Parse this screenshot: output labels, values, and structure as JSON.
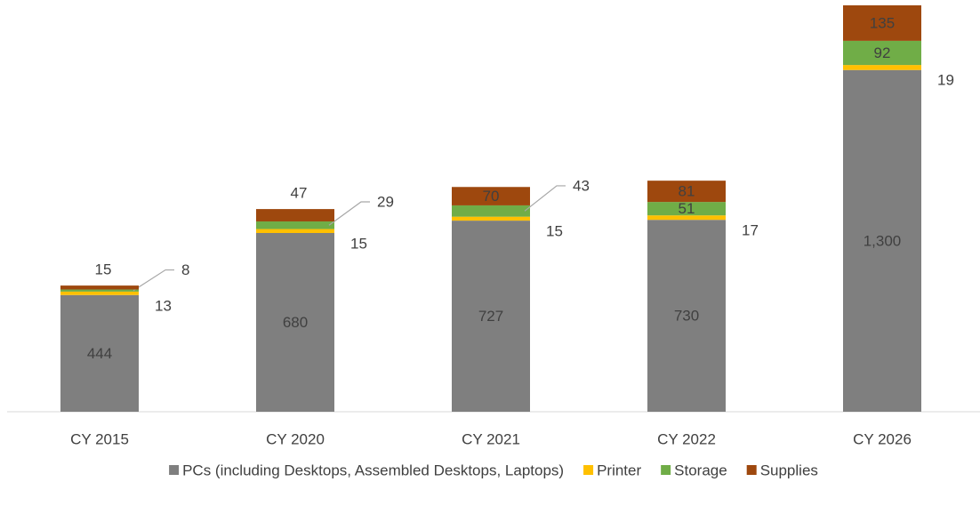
{
  "chart_data": {
    "type": "stacked_bar",
    "categories": [
      "CY 2015",
      "CY 2020",
      "CY 2021",
      "CY 2022",
      "CY 2026"
    ],
    "series": [
      {
        "name": "PCs (including Desktops, Assembled Desktops, Laptops)",
        "color": "#7f7f7f",
        "values": [
          444,
          680,
          727,
          730,
          1300
        ],
        "value_labels": [
          "444",
          "680",
          "727",
          "730",
          "1,300"
        ]
      },
      {
        "name": "Printer",
        "color": "#ffc000",
        "values": [
          13,
          15,
          15,
          17,
          19
        ]
      },
      {
        "name": "Storage",
        "color": "#70ad47",
        "values": [
          8,
          29,
          43,
          51,
          92
        ]
      },
      {
        "name": "Supplies",
        "color": "#9e480e",
        "values": [
          15,
          47,
          70,
          81,
          135
        ]
      }
    ],
    "ylim": [
      0,
      1546
    ],
    "legend": "bottom"
  }
}
